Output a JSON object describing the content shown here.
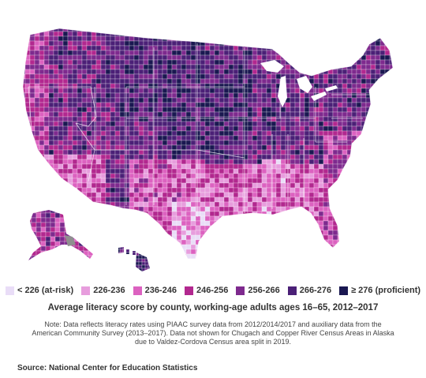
{
  "legend": {
    "items": [
      {
        "label": "< 226 (at-risk)",
        "color": "#e9ddf7"
      },
      {
        "label": "226-236",
        "color": "#e79ddd"
      },
      {
        "label": "236-246",
        "color": "#dc62c0"
      },
      {
        "label": "246-256",
        "color": "#b2288f"
      },
      {
        "label": "256-266",
        "color": "#7e2a8e"
      },
      {
        "label": "266-276",
        "color": "#4b2077"
      },
      {
        "label": "≥ 276 (proficient)",
        "color": "#1a1851"
      }
    ]
  },
  "caption": "Average literacy score by county, working-age adults ages 16–65, 2012–2017",
  "note": "Note: Data reflects literacy rates using PIAAC survey data from 2012/2014/2017 and auxiliary data from the American Community Survey (2013–2017). Data not shown for Chugach and Copper River Census Areas in Alaska due to Valdez-Cordova Census area split in 2019.",
  "source": "Source: National Center for Education Statistics",
  "colors": {
    "no_data": "#8f8f8f",
    "border": "#ffffff"
  }
}
